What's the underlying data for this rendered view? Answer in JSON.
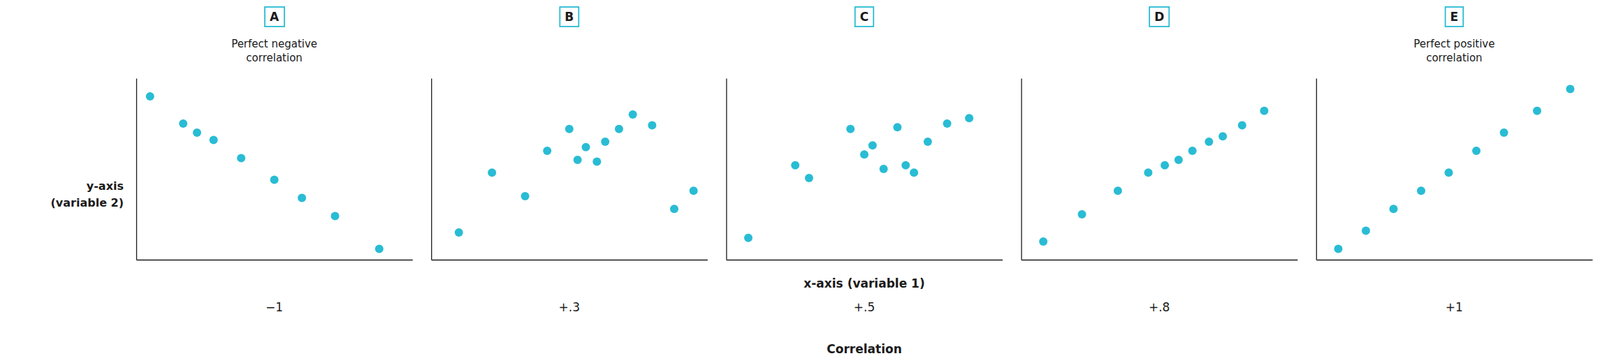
{
  "chart_data": [
    {
      "type": "scatter",
      "title": "A",
      "subtitle": "Perfect negative\ncorrelation",
      "annotations": [
        "−1"
      ],
      "y_label": "y-axis\n(variable 2)",
      "x": [
        0.05,
        0.17,
        0.22,
        0.28,
        0.38,
        0.5,
        0.6,
        0.72,
        0.88
      ],
      "values": [
        0.9,
        0.75,
        0.7,
        0.66,
        0.56,
        0.44,
        0.34,
        0.24,
        0.06
      ],
      "xlim": [
        0,
        1
      ],
      "ylim": [
        0,
        1
      ],
      "tick_labels": false,
      "grid": false,
      "color": "#29bcd4"
    },
    {
      "type": "scatter",
      "title": "B",
      "annotations": [
        "+.3"
      ],
      "x": [
        0.1,
        0.22,
        0.34,
        0.42,
        0.5,
        0.53,
        0.56,
        0.6,
        0.63,
        0.68,
        0.73,
        0.8,
        0.88,
        0.95
      ],
      "values": [
        0.15,
        0.48,
        0.35,
        0.6,
        0.72,
        0.55,
        0.62,
        0.54,
        0.65,
        0.72,
        0.8,
        0.74,
        0.28,
        0.38
      ],
      "xlim": [
        0,
        1
      ],
      "ylim": [
        0,
        1
      ],
      "tick_labels": false,
      "grid": false,
      "color": "#29bcd4"
    },
    {
      "type": "scatter",
      "title": "C",
      "annotations": [
        "+.5",
        "Correlation"
      ],
      "x_label": "x-axis (variable 1)",
      "x": [
        0.08,
        0.25,
        0.3,
        0.45,
        0.5,
        0.53,
        0.57,
        0.62,
        0.65,
        0.68,
        0.73,
        0.8,
        0.88
      ],
      "values": [
        0.12,
        0.52,
        0.45,
        0.72,
        0.58,
        0.63,
        0.5,
        0.73,
        0.52,
        0.48,
        0.65,
        0.75,
        0.78
      ],
      "xlim": [
        0,
        1
      ],
      "ylim": [
        0,
        1
      ],
      "tick_labels": false,
      "grid": false,
      "color": "#29bcd4"
    },
    {
      "type": "scatter",
      "title": "D",
      "annotations": [
        "+.8"
      ],
      "x": [
        0.08,
        0.22,
        0.35,
        0.46,
        0.52,
        0.57,
        0.62,
        0.68,
        0.73,
        0.8,
        0.88
      ],
      "values": [
        0.1,
        0.25,
        0.38,
        0.48,
        0.52,
        0.55,
        0.6,
        0.65,
        0.68,
        0.74,
        0.82
      ],
      "xlim": [
        0,
        1
      ],
      "ylim": [
        0,
        1
      ],
      "tick_labels": false,
      "grid": false,
      "color": "#29bcd4"
    },
    {
      "type": "scatter",
      "title": "E",
      "subtitle": "Perfect positive\ncorrelation",
      "annotations": [
        "+1"
      ],
      "x": [
        0.08,
        0.18,
        0.28,
        0.38,
        0.48,
        0.58,
        0.68,
        0.8,
        0.92
      ],
      "values": [
        0.06,
        0.16,
        0.28,
        0.38,
        0.48,
        0.6,
        0.7,
        0.82,
        0.94
      ],
      "xlim": [
        0,
        1
      ],
      "ylim": [
        0,
        1
      ],
      "tick_labels": false,
      "grid": false,
      "color": "#29bcd4"
    }
  ]
}
